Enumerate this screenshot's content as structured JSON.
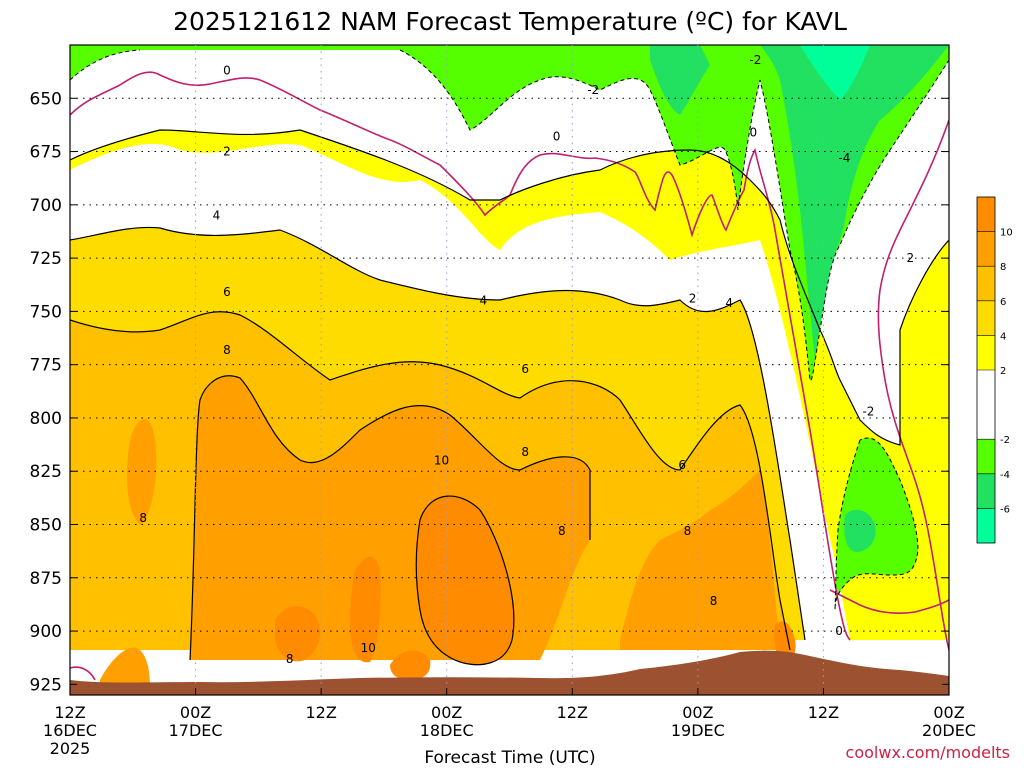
{
  "chart_data": {
    "type": "heatmap",
    "title": "2025121612 NAM Forecast Temperature (ºC) for KAVL",
    "xlabel": "Forecast Time (UTC)",
    "x_ticks": [
      {
        "t": 0,
        "label": "12Z",
        "sub": "16DEC",
        "sub2": "2025"
      },
      {
        "t": 12,
        "label": "00Z",
        "sub": "17DEC"
      },
      {
        "t": 24,
        "label": "12Z"
      },
      {
        "t": 36,
        "label": "00Z",
        "sub": "18DEC"
      },
      {
        "t": 48,
        "label": "12Z"
      },
      {
        "t": 60,
        "label": "00Z",
        "sub": "19DEC"
      },
      {
        "t": 72,
        "label": "12Z"
      },
      {
        "t": 84,
        "label": "00Z",
        "sub": "20DEC"
      }
    ],
    "y_ticks": [
      650,
      675,
      700,
      725,
      750,
      775,
      800,
      825,
      850,
      875,
      900,
      925
    ],
    "xlim": [
      0,
      84
    ],
    "ylim": [
      625,
      930
    ],
    "colorbar": {
      "labels": [
        "10",
        "8",
        "6",
        "4",
        "2",
        "-2",
        "-4",
        "-6"
      ],
      "bands": [
        {
          "from": 10,
          "to": 12,
          "color": "#ff8c00"
        },
        {
          "from": 8,
          "to": 10,
          "color": "#ffa000"
        },
        {
          "from": 6,
          "to": 8,
          "color": "#ffc000"
        },
        {
          "from": 4,
          "to": 6,
          "color": "#ffdc00"
        },
        {
          "from": 2,
          "to": 4,
          "color": "#ffff00"
        },
        {
          "from": -2,
          "to": 2,
          "color": "#ffffff"
        },
        {
          "from": -4,
          "to": -2,
          "color": "#55ff00"
        },
        {
          "from": -6,
          "to": -4,
          "color": "#22e060"
        },
        {
          "from": -8,
          "to": -6,
          "color": "#00ff99"
        }
      ]
    },
    "contour_labels": [
      {
        "text": "0",
        "t": 15.0,
        "p": 637
      },
      {
        "text": "-2",
        "t": 50.0,
        "p": 646
      },
      {
        "text": "-2",
        "t": 65.5,
        "p": 632
      },
      {
        "text": "0",
        "t": 46.5,
        "p": 668
      },
      {
        "text": "0",
        "t": 65.3,
        "p": 666
      },
      {
        "text": "-4",
        "t": 74.0,
        "p": 678
      },
      {
        "text": "2",
        "t": 15.0,
        "p": 675
      },
      {
        "text": "4",
        "t": 14.0,
        "p": 705
      },
      {
        "text": "6",
        "t": 15.0,
        "p": 741
      },
      {
        "text": "4",
        "t": 39.5,
        "p": 745
      },
      {
        "text": "2",
        "t": 59.5,
        "p": 744
      },
      {
        "text": "4",
        "t": 63.0,
        "p": 746
      },
      {
        "text": "2",
        "t": 80.3,
        "p": 725
      },
      {
        "text": "8",
        "t": 15.0,
        "p": 768
      },
      {
        "text": "6",
        "t": 43.5,
        "p": 777
      },
      {
        "text": "-2",
        "t": 76.3,
        "p": 797
      },
      {
        "text": "10",
        "t": 35.5,
        "p": 820
      },
      {
        "text": "8",
        "t": 43.5,
        "p": 816
      },
      {
        "text": "6",
        "t": 58.5,
        "p": 822
      },
      {
        "text": "8",
        "t": 7.0,
        "p": 847
      },
      {
        "text": "8",
        "t": 47.0,
        "p": 853
      },
      {
        "text": "8",
        "t": 59.0,
        "p": 853
      },
      {
        "text": "8",
        "t": 61.5,
        "p": 886
      },
      {
        "text": "10",
        "t": 28.5,
        "p": 908
      },
      {
        "text": "8",
        "t": 21.0,
        "p": 913
      },
      {
        "text": "0",
        "t": 73.5,
        "p": 900
      }
    ],
    "credit": "coolwx.com/modelts"
  }
}
